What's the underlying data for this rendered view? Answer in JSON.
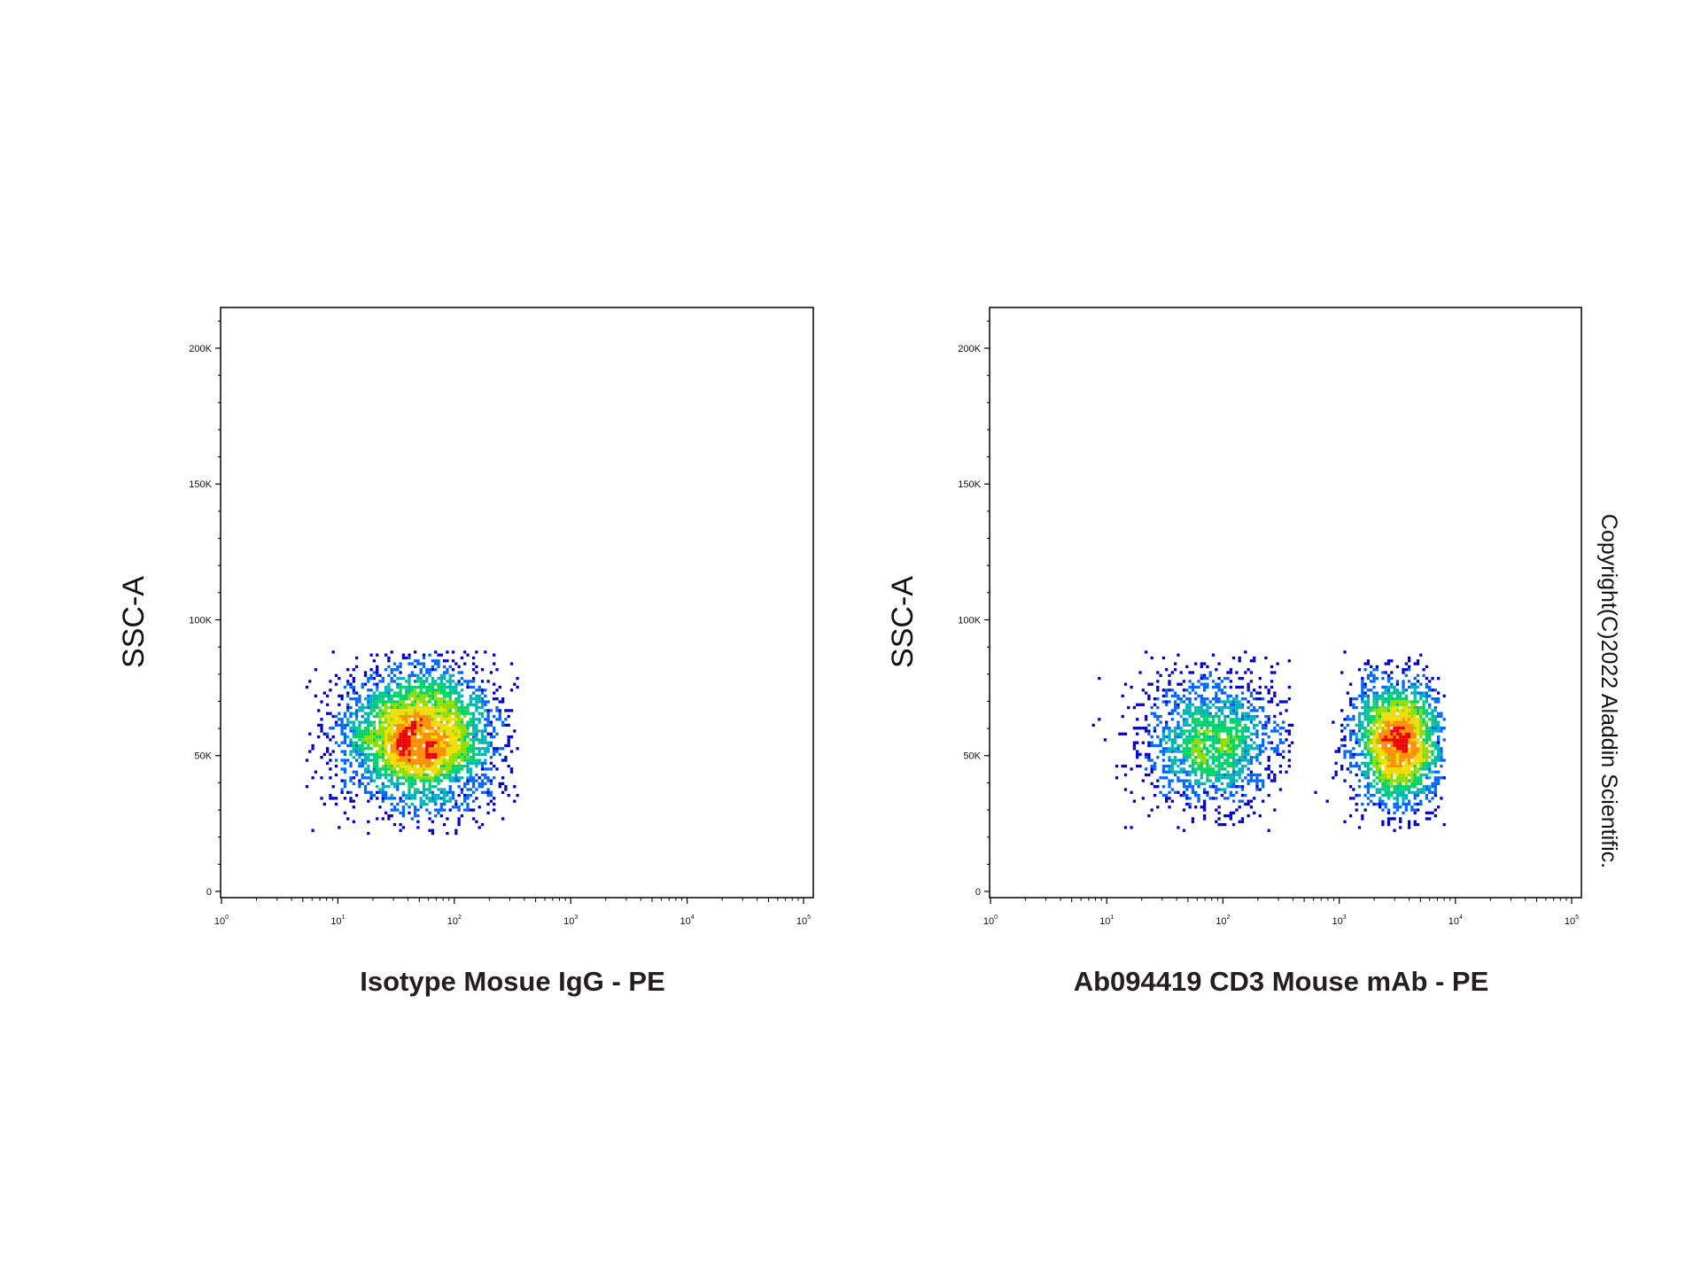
{
  "chart_data": [
    {
      "type": "scatter",
      "subtype": "flow-cytometry density dot plot",
      "xlabel": "Isotype Mosue IgG - PE",
      "ylabel": "SSC-A",
      "x_scale": "log",
      "xlim": [
        1,
        100000
      ],
      "ylim": [
        0,
        215000
      ],
      "x_ticks": [
        {
          "base": "10",
          "exp": "0",
          "value": 1
        },
        {
          "base": "10",
          "exp": "1",
          "value": 10
        },
        {
          "base": "10",
          "exp": "2",
          "value": 100
        },
        {
          "base": "10",
          "exp": "3",
          "value": 1000
        },
        {
          "base": "10",
          "exp": "4",
          "value": 10000
        },
        {
          "base": "10",
          "exp": "5",
          "value": 100000
        }
      ],
      "y_ticks": [
        {
          "label": "0",
          "value": 0
        },
        {
          "label": "50K",
          "value": 50000
        },
        {
          "label": "100K",
          "value": 100000
        },
        {
          "label": "150K",
          "value": 150000
        },
        {
          "label": "200K",
          "value": 200000
        }
      ],
      "grid": false,
      "populations": [
        {
          "x_center": 50,
          "y_center": 57000,
          "x_spread_log10": 0.33,
          "y_spread": 13000,
          "x_range": [
            5,
            350
          ],
          "y_range": [
            21000,
            89000
          ],
          "events": 3800,
          "peak_x": 80,
          "peak_y": 57000
        }
      ]
    },
    {
      "type": "scatter",
      "subtype": "flow-cytometry density dot plot",
      "xlabel": "Ab094419 CD3 Mouse mAb - PE",
      "ylabel": "SSC-A",
      "x_scale": "log",
      "xlim": [
        1,
        100000
      ],
      "ylim": [
        0,
        215000
      ],
      "x_ticks": [
        {
          "base": "10",
          "exp": "0",
          "value": 1
        },
        {
          "base": "10",
          "exp": "1",
          "value": 10
        },
        {
          "base": "10",
          "exp": "2",
          "value": 100
        },
        {
          "base": "10",
          "exp": "3",
          "value": 1000
        },
        {
          "base": "10",
          "exp": "4",
          "value": 10000
        },
        {
          "base": "10",
          "exp": "5",
          "value": 100000
        }
      ],
      "y_ticks": [
        {
          "label": "0",
          "value": 0
        },
        {
          "label": "50K",
          "value": 50000
        },
        {
          "label": "100K",
          "value": 100000
        },
        {
          "label": "150K",
          "value": 150000
        },
        {
          "label": "200K",
          "value": 200000
        }
      ],
      "grid": false,
      "populations": [
        {
          "x_center": 80,
          "y_center": 55000,
          "x_spread_log10": 0.3,
          "y_spread": 13000,
          "x_range": [
            5,
            400
          ],
          "y_range": [
            22000,
            89000
          ],
          "events": 1700,
          "peak_x": 90,
          "peak_y": 58000
        },
        {
          "x_center": 3200,
          "y_center": 55000,
          "x_spread_log10": 0.2,
          "y_spread": 12500,
          "x_range": [
            500,
            8000
          ],
          "y_range": [
            22000,
            89000
          ],
          "events": 2300,
          "peak_x": 3500,
          "peak_y": 55000
        }
      ]
    }
  ],
  "copyright": "Copyright(C)2022 Aladdin Scientific.",
  "colors": {
    "background": "#ffffff",
    "axis": "#000000",
    "text": "#231f20",
    "density_scale": [
      "#0000c8",
      "#0064ff",
      "#00b4b4",
      "#00d264",
      "#8cdc00",
      "#f0dc00",
      "#ff8c00",
      "#e60000"
    ]
  }
}
